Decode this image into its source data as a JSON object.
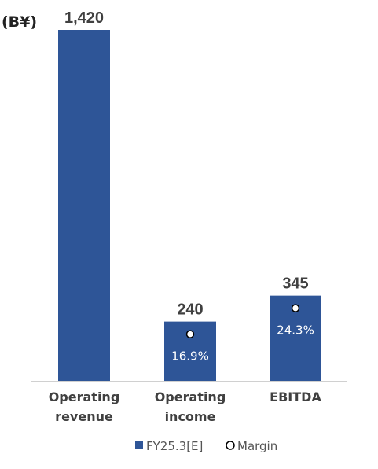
{
  "chart_data": {
    "type": "bar",
    "unit_label": "(B¥)",
    "categories": [
      [
        "Operating",
        "revenue"
      ],
      [
        "Operating",
        "income"
      ],
      [
        "EBITDA"
      ]
    ],
    "series": [
      {
        "name": "FY25.3[E]",
        "values": [
          1420,
          240,
          345
        ],
        "value_labels": [
          "1,420",
          "240",
          "345"
        ],
        "color": "#2E5597"
      }
    ],
    "margin_series": {
      "name": "Margin",
      "labels": [
        null,
        "16.9%",
        "24.3%"
      ]
    },
    "legend_position": "bottom",
    "grid": false,
    "ylim": [
      0,
      1420
    ]
  }
}
